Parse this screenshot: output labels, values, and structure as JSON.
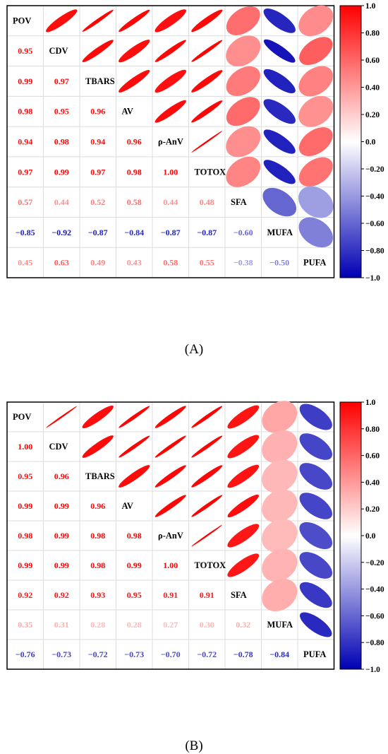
{
  "chart_data": [
    {
      "type": "heatmap",
      "panel_label": "(A)",
      "variables": [
        "POV",
        "CDV",
        "TBARS",
        "AV",
        "ρ-AnV",
        "TOTOX",
        "SFA",
        "MUFA",
        "PUFA"
      ],
      "correlation_labels": [
        [
          null,
          null,
          null,
          null,
          null,
          null,
          null,
          null,
          null
        ],
        [
          "0.95",
          null,
          null,
          null,
          null,
          null,
          null,
          null,
          null
        ],
        [
          "0.99",
          "0.97",
          null,
          null,
          null,
          null,
          null,
          null,
          null
        ],
        [
          "0.98",
          "0.95",
          "0.96",
          null,
          null,
          null,
          null,
          null,
          null
        ],
        [
          "0.94",
          "0.98",
          "0.94",
          "0.96",
          null,
          null,
          null,
          null,
          null
        ],
        [
          "0.97",
          "0.99",
          "0.97",
          "0.98",
          "1.00",
          null,
          null,
          null,
          null
        ],
        [
          "0.57",
          "0.44",
          "0.52",
          "0.58",
          "0.44",
          "0.48",
          null,
          null,
          null
        ],
        [
          "−0.85",
          "−0.92",
          "−0.87",
          "−0.84",
          "−0.87",
          "−0.87",
          "−0.60",
          null,
          null
        ],
        [
          "0.45",
          "0.63",
          "0.49",
          "0.43",
          "0.58",
          "0.55",
          "−0.38",
          "−0.50",
          null
        ]
      ],
      "colorbar_ticks": [
        "1.0",
        "0.80",
        "0.60",
        "0.40",
        "0.20",
        "0.0",
        "−0.20",
        "−0.40",
        "−0.60",
        "−0.80",
        "−1.0"
      ],
      "color_scale": {
        "min": -1.0,
        "max": 1.0,
        "negative": "#0000b3",
        "zero": "#ffffff",
        "positive": "#ff0000"
      }
    },
    {
      "type": "heatmap",
      "panel_label": "(B)",
      "variables": [
        "POV",
        "CDV",
        "TBARS",
        "AV",
        "ρ-AnV",
        "TOTOX",
        "SFA",
        "MUFA",
        "PUFA"
      ],
      "correlation_labels": [
        [
          null,
          null,
          null,
          null,
          null,
          null,
          null,
          null,
          null
        ],
        [
          "1.00",
          null,
          null,
          null,
          null,
          null,
          null,
          null,
          null
        ],
        [
          "0.95",
          "0.96",
          null,
          null,
          null,
          null,
          null,
          null,
          null
        ],
        [
          "0.99",
          "0.99",
          "0.96",
          null,
          null,
          null,
          null,
          null,
          null
        ],
        [
          "0.98",
          "0.99",
          "0.98",
          "0.98",
          null,
          null,
          null,
          null,
          null
        ],
        [
          "0.99",
          "0.99",
          "0.98",
          "0.99",
          "1.00",
          null,
          null,
          null,
          null
        ],
        [
          "0.92",
          "0.92",
          "0.93",
          "0.95",
          "0.91",
          "0.91",
          null,
          null,
          null
        ],
        [
          "0.35",
          "0.31",
          "0.28",
          "0.28",
          "0.27",
          "0.30",
          "0.32",
          null,
          null
        ],
        [
          "−0.76",
          "−0.73",
          "−0.72",
          "−0.73",
          "−0.70",
          "−0.72",
          "−0.78",
          "−0.84",
          null
        ]
      ],
      "colorbar_ticks": [
        "1.0",
        "0.80",
        "0.60",
        "0.40",
        "0.20",
        "0.0",
        "−0.20",
        "−0.40",
        "−0.60",
        "−0.80",
        "−1.0"
      ],
      "color_scale": {
        "min": -1.0,
        "max": 1.0,
        "negative": "#0000b3",
        "zero": "#ffffff",
        "positive": "#ff0000"
      }
    }
  ]
}
